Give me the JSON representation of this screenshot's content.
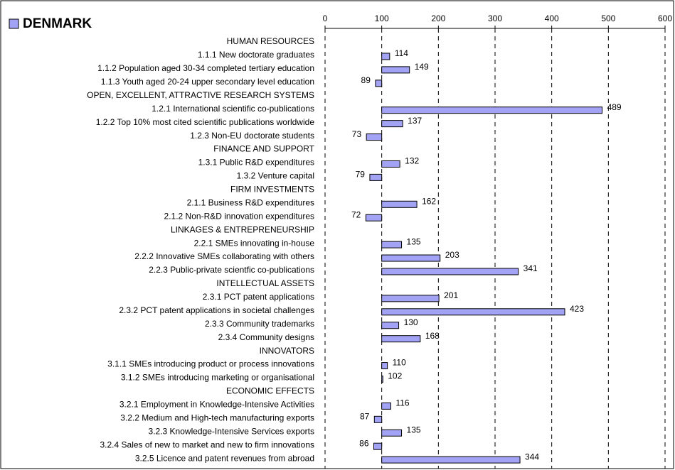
{
  "chart_data": {
    "type": "hbar",
    "title": "DENMARK",
    "color": "#a3a3f5",
    "base": 100,
    "xlim": [
      0,
      600
    ],
    "xticks": [
      0,
      100,
      200,
      300,
      400,
      500,
      600
    ],
    "grid": true,
    "categories": [
      "HUMAN RESOURCES",
      "1.1.1 New doctorate graduates",
      "1.1.2 Population aged 30-34 completed tertiary education",
      "1.1.3 Youth aged 20-24 upper secondary level education",
      "OPEN, EXCELLENT, ATTRACTIVE RESEARCH SYSTEMS",
      "1.2.1 International scientific co-publications",
      "1.2.2 Top 10% most cited scientific publications worldwide",
      "1.2.3 Non-EU doctorate students",
      "FINANCE AND SUPPORT",
      "1.3.1 Public R&D expenditures",
      "1.3.2 Venture capital",
      "FIRM INVESTMENTS",
      "2.1.1 Business R&D expenditures",
      "2.1.2 Non-R&D innovation expenditures",
      "LINKAGES & ENTREPRENEURSHIP",
      "2.2.1 SMEs innovating in-house",
      "2.2.2 Innovative SMEs collaborating with others",
      "2.2.3 Public-private scientfic co-publications",
      "INTELLECTUAL ASSETS",
      "2.3.1 PCT patent applications",
      "2.3.2 PCT patent applications in societal challenges",
      "2.3.3 Community trademarks",
      "2.3.4 Community designs",
      "INNOVATORS",
      "3.1.1 SMEs introducing product or process innovations",
      "3.1.2 SMEs introducing marketing or organisational",
      "ECONOMIC EFFECTS",
      "3.2.1 Employment in Knowledge-Intensive Activities",
      "3.2.2 Medium and High-tech manufacturing exports",
      "3.2.3 Knowledge-Intensive Services exports",
      "3.2.4 Sales of new to market and new to firm innovations",
      "3.2.5 Licence and patent revenues from abroad"
    ],
    "values": [
      null,
      114,
      149,
      89,
      null,
      489,
      137,
      73,
      null,
      132,
      79,
      null,
      162,
      72,
      null,
      135,
      203,
      341,
      null,
      201,
      423,
      130,
      168,
      null,
      110,
      102,
      null,
      116,
      87,
      135,
      86,
      344
    ]
  }
}
